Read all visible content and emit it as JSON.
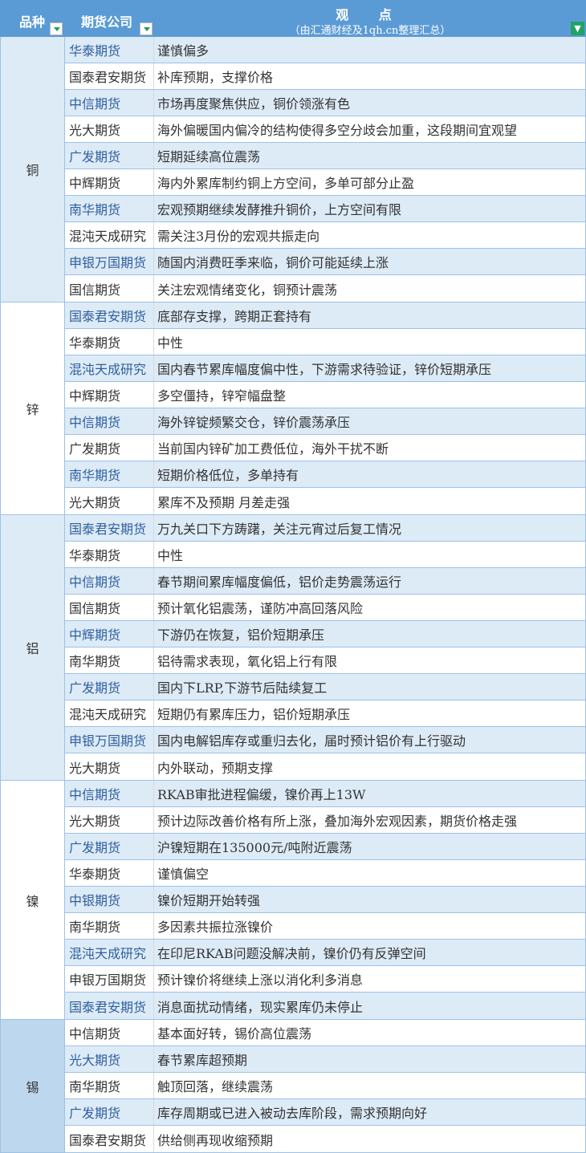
{
  "header": {
    "category": "品种",
    "company": "期货公司",
    "view_title": "观 点",
    "view_subtitle": "（由汇通财经及1qh.cn整理汇总）"
  },
  "colors": {
    "header": "#5b9bd5",
    "shaded_row": "#ddebf7",
    "tin_category": "#bdd7ee"
  },
  "groups": [
    {
      "name": "铜",
      "bg": "#ddebf7",
      "rows": [
        [
          "华泰期货",
          "谨慎偏多"
        ],
        [
          "国泰君安期货",
          "补库预期，支撑价格"
        ],
        [
          "中信期货",
          "市场再度聚焦供应，铜价领涨有色"
        ],
        [
          "光大期货",
          "海外偏暖国内偏冷的结构使得多空分歧会加重，这段期间宜观望"
        ],
        [
          "广发期货",
          "短期延续高位震荡"
        ],
        [
          "中辉期货",
          "海内外累库制约铜上方空间，多单可部分止盈"
        ],
        [
          "南华期货",
          "宏观预期继续发酵推升铜价，上方空间有限"
        ],
        [
          "混沌天成研究",
          "需关注3月份的宏观共振走向"
        ],
        [
          "申银万国期货",
          "随国内消费旺季来临，铜价可能延续上涨"
        ],
        [
          "国信期货",
          "关注宏观情绪变化，铜预计震荡"
        ]
      ]
    },
    {
      "name": "锌",
      "bg": "#ffffff",
      "rows": [
        [
          "国泰君安期货",
          "底部存支撑，跨期正套持有"
        ],
        [
          "华泰期货",
          "中性"
        ],
        [
          "混沌天成研究",
          "国内春节累库幅度偏中性，下游需求待验证，锌价短期承压"
        ],
        [
          "中辉期货",
          "多空僵持，锌窄幅盘整"
        ],
        [
          "中信期货",
          "海外锌锭频繁交仓，锌价震荡承压"
        ],
        [
          "广发期货",
          "当前国内锌矿加工费低位，海外干扰不断"
        ],
        [
          "南华期货",
          "短期价格低位，多单持有"
        ],
        [
          "光大期货",
          "累库不及预期 月差走强"
        ]
      ]
    },
    {
      "name": "铝",
      "bg": "#ddebf7",
      "rows": [
        [
          "国泰君安期货",
          "万九关口下方踌躇，关注元宵过后复工情况"
        ],
        [
          "华泰期货",
          "中性"
        ],
        [
          "中信期货",
          "春节期间累库幅度偏低，铝价走势震荡运行"
        ],
        [
          "国信期货",
          "预计氧化铝震荡，谨防冲高回落风险"
        ],
        [
          "中辉期货",
          "下游仍在恢复，铝价短期承压"
        ],
        [
          "南华期货",
          "铝待需求表现，氧化铝上行有限"
        ],
        [
          "广发期货",
          "国内下LRP,下游节后陆续复工"
        ],
        [
          "混沌天成研究",
          "短期仍有累库压力，铝价短期承压"
        ],
        [
          "申银万国期货",
          "国内电解铝库存或重归去化，届时预计铝价有上行驱动"
        ],
        [
          "光大期货",
          "内外联动，预期支撑"
        ]
      ]
    },
    {
      "name": "镍",
      "bg": "#ffffff",
      "rows": [
        [
          "中信期货",
          "RKAB审批进程偏缓，镍价再上13W"
        ],
        [
          "光大期货",
          "预计边际改善价格有所上涨，叠加海外宏观因素，期货价格走强"
        ],
        [
          "广发期货",
          "沪镍短期在135000元/吨附近震荡"
        ],
        [
          "华泰期货",
          "谨慎偏空"
        ],
        [
          "中银期货",
          "镍价短期开始转强"
        ],
        [
          "南华期货",
          "多因素共振拉涨镍价"
        ],
        [
          "混沌天成研究",
          "在印尼RKAB问题没解决前，镍价仍有反弹空间"
        ],
        [
          "申银万国期货",
          "预计镍价将继续上涨以消化利多消息"
        ],
        [
          "国泰君安期货",
          "消息面扰动情绪，现实累库仍未停止"
        ]
      ]
    },
    {
      "name": "锡",
      "bg": "#bdd7ee",
      "rows": [
        [
          "中信期货",
          "基本面好转，锡价高位震荡"
        ],
        [
          "光大期货",
          "春节累库超预期"
        ],
        [
          "南华期货",
          "触顶回落，继续震荡"
        ],
        [
          "广发期货",
          "库存周期或已进入被动去库阶段，需求预期向好"
        ],
        [
          "国泰君安期货",
          "供给侧再现收缩预期"
        ]
      ]
    }
  ]
}
